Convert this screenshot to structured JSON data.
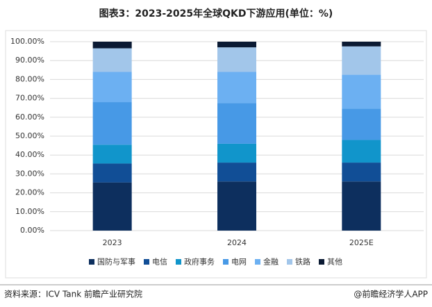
{
  "chart_data": {
    "type": "stacked_bar",
    "title": "图表3：2023-2025年全球QKD下游应用(单位：%)",
    "categories": [
      "2023",
      "2024",
      "2025E"
    ],
    "series": [
      {
        "name": "国防与军事",
        "color": "#0d2f5e",
        "values": [
          25.5,
          26,
          26
        ]
      },
      {
        "name": "电信",
        "color": "#114e96",
        "values": [
          10,
          10,
          10
        ]
      },
      {
        "name": "政府事务",
        "color": "#1195cb",
        "values": [
          10,
          10,
          12
        ]
      },
      {
        "name": "电网",
        "color": "#4799e6",
        "values": [
          22.5,
          21.5,
          16.5
        ]
      },
      {
        "name": "金融",
        "color": "#6cb0f2",
        "values": [
          16,
          16.5,
          18
        ]
      },
      {
        "name": "铁路",
        "color": "#a2c6ea",
        "values": [
          12.5,
          13,
          15
        ]
      },
      {
        "name": "其他",
        "color": "#0b1a33",
        "values": [
          3.5,
          3,
          2.5
        ]
      }
    ],
    "ylim": [
      0,
      100
    ],
    "yticks": [
      {
        "value": 0,
        "label": "0.00%"
      },
      {
        "value": 10,
        "label": "10.00%"
      },
      {
        "value": 20,
        "label": "20.00%"
      },
      {
        "value": 30,
        "label": "30.00%"
      },
      {
        "value": 40,
        "label": "40.00%"
      },
      {
        "value": 50,
        "label": "50.00%"
      },
      {
        "value": 60,
        "label": "60.00%"
      },
      {
        "value": 70,
        "label": "70.00%"
      },
      {
        "value": 80,
        "label": "80.00%"
      },
      {
        "value": 90,
        "label": "90.00%"
      },
      {
        "value": 100,
        "label": "100.00%"
      }
    ],
    "grid": true,
    "source": "资料来源：ICV Tank 前瞻产业研究院",
    "credit": "@前瞻经济学人APP"
  }
}
